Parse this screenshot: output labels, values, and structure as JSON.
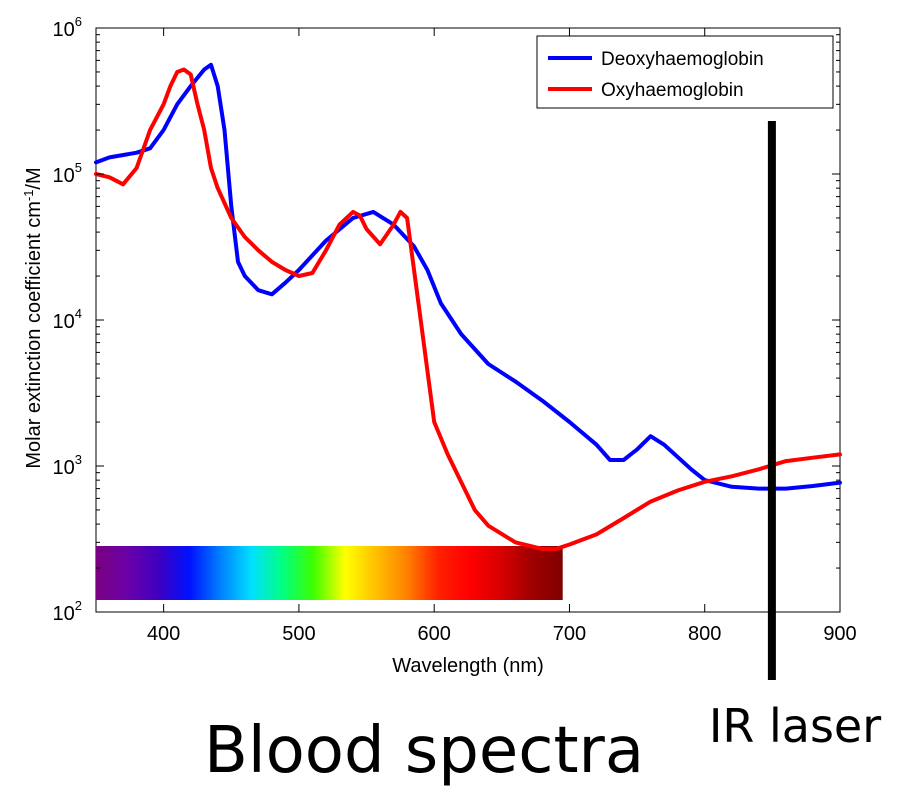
{
  "chart_data": {
    "type": "line",
    "title": "Blood spectra",
    "xlabel": "Wavelength (nm)",
    "ylabel": "Molar extinction coefficient cm-1/M",
    "ylabel_parts": [
      "Molar extinction coefficient cm",
      "-1",
      "/M"
    ],
    "xlim": [
      350,
      900
    ],
    "ylim": [
      100,
      1000000
    ],
    "yscale": "log",
    "grid": false,
    "legend_position": "top-right",
    "x_ticks": [
      400,
      500,
      600,
      700,
      800,
      900
    ],
    "y_ticks": [
      {
        "value": 100,
        "base": "10",
        "exp": "2"
      },
      {
        "value": 1000,
        "base": "10",
        "exp": "3"
      },
      {
        "value": 10000,
        "base": "10",
        "exp": "4"
      },
      {
        "value": 100000,
        "base": "10",
        "exp": "5"
      },
      {
        "value": 1000000,
        "base": "10",
        "exp": "6"
      }
    ],
    "series": [
      {
        "name": "Deoxyhaemoglobin",
        "color": "#0000ff",
        "x": [
          350,
          360,
          380,
          390,
          400,
          410,
          420,
          430,
          435,
          440,
          445,
          450,
          455,
          460,
          470,
          480,
          490,
          500,
          520,
          540,
          555,
          570,
          585,
          595,
          605,
          620,
          640,
          660,
          680,
          700,
          720,
          730,
          740,
          750,
          760,
          770,
          790,
          800,
          820,
          840,
          860,
          880,
          900
        ],
        "y": [
          120000,
          130000,
          140000,
          150000,
          200000,
          300000,
          400000,
          520000,
          560000,
          400000,
          200000,
          60000,
          25000,
          20000,
          16000,
          15000,
          18000,
          22000,
          35000,
          50000,
          55000,
          45000,
          32000,
          22000,
          13000,
          8000,
          5000,
          3800,
          2800,
          2000,
          1400,
          1100,
          1100,
          1300,
          1600,
          1400,
          950,
          800,
          720,
          700,
          700,
          730,
          770
        ]
      },
      {
        "name": "Oxyhaemoglobin",
        "color": "#ff0000",
        "x": [
          350,
          360,
          370,
          380,
          390,
          400,
          405,
          410,
          415,
          420,
          425,
          430,
          435,
          440,
          450,
          460,
          470,
          480,
          490,
          500,
          510,
          520,
          530,
          540,
          545,
          550,
          560,
          570,
          575,
          580,
          590,
          600,
          610,
          630,
          640,
          660,
          680,
          690,
          700,
          720,
          740,
          760,
          780,
          800,
          820,
          840,
          860,
          880,
          900
        ],
        "y": [
          100000,
          95000,
          85000,
          110000,
          200000,
          300000,
          400000,
          500000,
          520000,
          480000,
          300000,
          200000,
          110000,
          80000,
          50000,
          37000,
          30000,
          25000,
          22000,
          20000,
          21000,
          30000,
          45000,
          55000,
          52000,
          42000,
          33000,
          45000,
          55000,
          50000,
          10000,
          2000,
          1200,
          500,
          390,
          300,
          270,
          270,
          290,
          340,
          440,
          570,
          680,
          780,
          850,
          950,
          1080,
          1140,
          1200
        ]
      }
    ],
    "colorbar": {
      "range": [
        350,
        695
      ],
      "stops": [
        "#7a0080",
        "#6a00a8",
        "#4000c0",
        "#0010ff",
        "#0080ff",
        "#00e0ff",
        "#00ff80",
        "#40ff00",
        "#ffff00",
        "#ffc000",
        "#ff8000",
        "#ff2000",
        "#ff0000",
        "#d80000",
        "#a00000",
        "#800000"
      ]
    },
    "marker_line": {
      "x": 860,
      "label": "IR laser",
      "color": "#000000"
    }
  }
}
